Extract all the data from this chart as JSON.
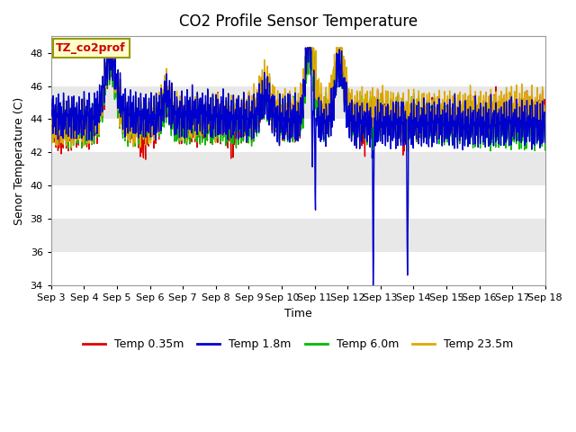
{
  "title": "CO2 Profile Sensor Temperature",
  "xlabel": "Time",
  "ylabel": "Senor Temperature (C)",
  "ylim": [
    34,
    49
  ],
  "yticks": [
    34,
    36,
    38,
    40,
    42,
    44,
    46,
    48
  ],
  "xtick_labels": [
    "Sep 3",
    "Sep 4",
    "Sep 5",
    "Sep 6",
    "Sep 7",
    "Sep 8",
    "Sep 9",
    "Sep 10",
    "Sep 11",
    "Sep 12",
    "Sep 13",
    "Sep 14",
    "Sep 15",
    "Sep 16",
    "Sep 17",
    "Sep 18"
  ],
  "annotation_text": "TZ_co2prof",
  "annotation_color": "#cc0000",
  "annotation_bg": "#ffffcc",
  "annotation_border": "#999900",
  "legend_labels": [
    "Temp 0.35m",
    "Temp 1.8m",
    "Temp 6.0m",
    "Temp 23.5m"
  ],
  "line_colors": [
    "#dd0000",
    "#0000cc",
    "#00bb00",
    "#ddaa00"
  ],
  "band_colors": [
    "#ffffff",
    "#e8e8e8"
  ],
  "title_fontsize": 12,
  "axis_fontsize": 9,
  "tick_fontsize": 8
}
